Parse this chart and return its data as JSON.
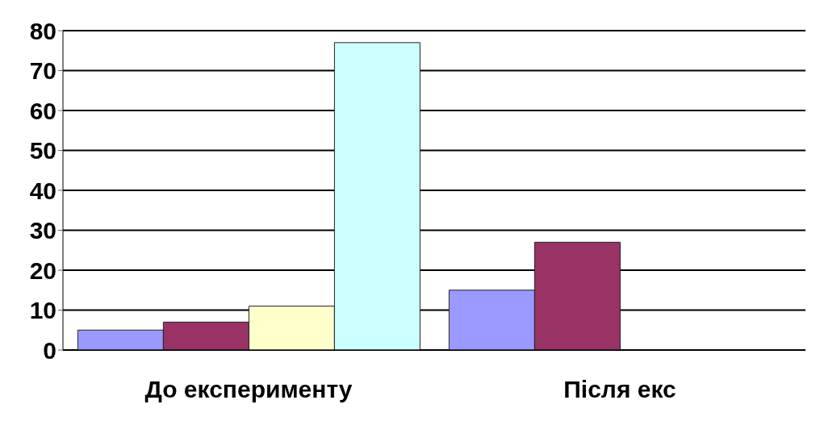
{
  "chart_data": {
    "type": "bar",
    "categories": [
      "До експерименту",
      "Після екс"
    ],
    "series": [
      {
        "color": "#9999ff",
        "values": [
          5,
          15
        ]
      },
      {
        "color": "#993366",
        "values": [
          7,
          27
        ]
      },
      {
        "color": "#ffffcc",
        "values": [
          11,
          null
        ]
      },
      {
        "color": "#ccffff",
        "values": [
          77,
          null
        ]
      }
    ],
    "ylim": [
      0,
      80
    ],
    "yticks": [
      0,
      10,
      20,
      30,
      40,
      50,
      60,
      70,
      80
    ],
    "grid": "y"
  }
}
